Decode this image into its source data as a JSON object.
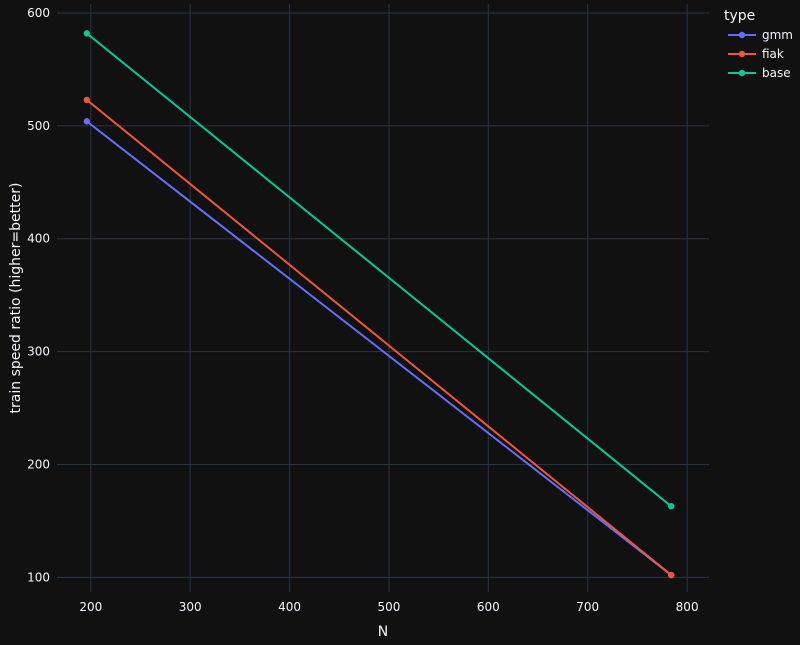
{
  "chart_data": {
    "type": "line",
    "xlabel": "N",
    "ylabel": "train speed ratio (higher=better)",
    "xlim": [
      166,
      822
    ],
    "ylim": [
      87,
      608
    ],
    "xticks": [
      200,
      300,
      400,
      500,
      600,
      700,
      800
    ],
    "yticks": [
      100,
      200,
      300,
      400,
      500,
      600
    ],
    "grid": true,
    "legend": {
      "title": "type",
      "placement": "top-right"
    },
    "series": [
      {
        "name": "gmm",
        "color": "#636efa",
        "x": [
          196,
          784
        ],
        "y": [
          504,
          102
        ]
      },
      {
        "name": "fiak",
        "color": "#ef553b",
        "x": [
          196,
          784
        ],
        "y": [
          523,
          102
        ]
      },
      {
        "name": "base",
        "color": "#00cc96",
        "x": [
          196,
          784
        ],
        "y": [
          582,
          163
        ]
      }
    ]
  }
}
